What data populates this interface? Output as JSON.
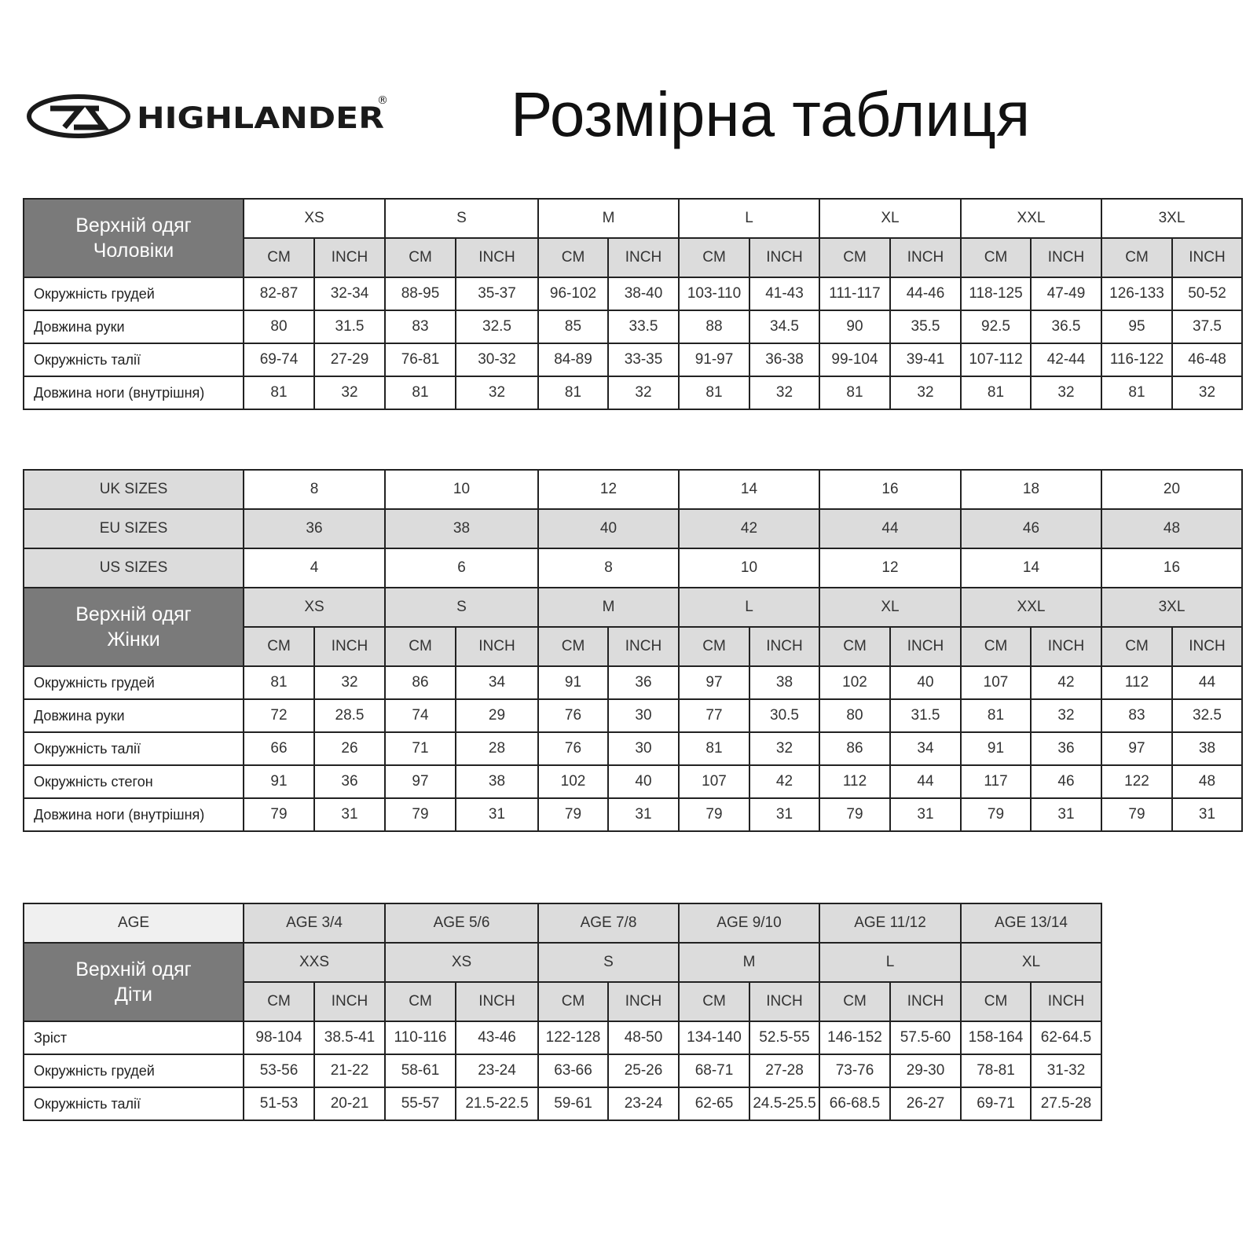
{
  "header": {
    "brand": "HIGHLANDER",
    "registered": "®",
    "title": "Розмірна таблиця"
  },
  "colors": {
    "dark_header": "#7a7a7a",
    "light_header": "#dcdcdc",
    "border": "#222222"
  },
  "units": [
    "CM",
    "INCH"
  ],
  "men": {
    "title_lines": [
      "Верхній одяг",
      "Чоловіки"
    ],
    "sizes": [
      "XS",
      "S",
      "M",
      "L",
      "XL",
      "XXL",
      "3XL"
    ],
    "rows": [
      {
        "label": "Окружність грудей",
        "values": [
          "82-87",
          "32-34",
          "88-95",
          "35-37",
          "96-102",
          "38-40",
          "103-110",
          "41-43",
          "111-117",
          "44-46",
          "118-125",
          "47-49",
          "126-133",
          "50-52"
        ]
      },
      {
        "label": "Довжина руки",
        "values": [
          "80",
          "31.5",
          "83",
          "32.5",
          "85",
          "33.5",
          "88",
          "34.5",
          "90",
          "35.5",
          "92.5",
          "36.5",
          "95",
          "37.5"
        ]
      },
      {
        "label": "Окружність талії",
        "values": [
          "69-74",
          "27-29",
          "76-81",
          "30-32",
          "84-89",
          "33-35",
          "91-97",
          "36-38",
          "99-104",
          "39-41",
          "107-112",
          "42-44",
          "116-122",
          "46-48"
        ]
      },
      {
        "label": "Довжина ноги (внутрішня)",
        "values": [
          "81",
          "32",
          "81",
          "32",
          "81",
          "32",
          "81",
          "32",
          "81",
          "32",
          "81",
          "32",
          "81",
          "32"
        ]
      }
    ]
  },
  "women": {
    "conversions": [
      {
        "label": "UK SIZES",
        "values": [
          "8",
          "10",
          "12",
          "14",
          "16",
          "18",
          "20"
        ]
      },
      {
        "label": "EU SIZES",
        "values": [
          "36",
          "38",
          "40",
          "42",
          "44",
          "46",
          "48"
        ]
      },
      {
        "label": "US SIZES",
        "values": [
          "4",
          "6",
          "8",
          "10",
          "12",
          "14",
          "16"
        ]
      }
    ],
    "title_lines": [
      "Верхній одяг",
      "Жінки"
    ],
    "sizes": [
      "XS",
      "S",
      "M",
      "L",
      "XL",
      "XXL",
      "3XL"
    ],
    "rows": [
      {
        "label": "Окружність грудей",
        "values": [
          "81",
          "32",
          "86",
          "34",
          "91",
          "36",
          "97",
          "38",
          "102",
          "40",
          "107",
          "42",
          "112",
          "44"
        ]
      },
      {
        "label": "Довжина руки",
        "values": [
          "72",
          "28.5",
          "74",
          "29",
          "76",
          "30",
          "77",
          "30.5",
          "80",
          "31.5",
          "81",
          "32",
          "83",
          "32.5"
        ]
      },
      {
        "label": "Окружність талії",
        "values": [
          "66",
          "26",
          "71",
          "28",
          "76",
          "30",
          "81",
          "32",
          "86",
          "34",
          "91",
          "36",
          "97",
          "38"
        ]
      },
      {
        "label": "Окружність стегон",
        "values": [
          "91",
          "36",
          "97",
          "38",
          "102",
          "40",
          "107",
          "42",
          "112",
          "44",
          "117",
          "46",
          "122",
          "48"
        ]
      },
      {
        "label": "Довжина ноги (внутрішня)",
        "values": [
          "79",
          "31",
          "79",
          "31",
          "79",
          "31",
          "79",
          "31",
          "79",
          "31",
          "79",
          "31",
          "79",
          "31"
        ]
      }
    ]
  },
  "kids": {
    "age_label": "AGE",
    "ages": [
      "AGE 3/4",
      "AGE 5/6",
      "AGE 7/8",
      "AGE 9/10",
      "AGE 11/12",
      "AGE 13/14"
    ],
    "title_lines": [
      "Верхній одяг",
      "Діти"
    ],
    "sizes": [
      "XXS",
      "XS",
      "S",
      "M",
      "L",
      "XL"
    ],
    "rows": [
      {
        "label": "Зріст",
        "values": [
          "98-104",
          "38.5-41",
          "110-116",
          "43-46",
          "122-128",
          "48-50",
          "134-140",
          "52.5-55",
          "146-152",
          "57.5-60",
          "158-164",
          "62-64.5"
        ]
      },
      {
        "label": "Окружність грудей",
        "values": [
          "53-56",
          "21-22",
          "58-61",
          "23-24",
          "63-66",
          "25-26",
          "68-71",
          "27-28",
          "73-76",
          "29-30",
          "78-81",
          "31-32"
        ]
      },
      {
        "label": "Окружність талії",
        "values": [
          "51-53",
          "20-21",
          "55-57",
          "21.5-22.5",
          "59-61",
          "23-24",
          "62-65",
          "24.5-25.5",
          "66-68.5",
          "26-27",
          "69-71",
          "27.5-28"
        ]
      }
    ]
  }
}
